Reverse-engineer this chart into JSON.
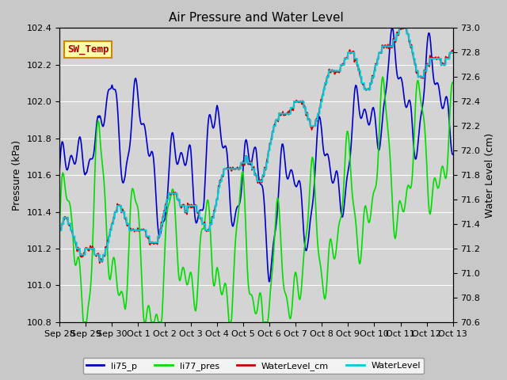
{
  "title": "Air Pressure and Water Level",
  "ylabel_left": "Pressure (kPa)",
  "ylabel_right": "Water Level (cm)",
  "ylim_left": [
    100.8,
    102.4
  ],
  "ylim_right": [
    70.6,
    73.0
  ],
  "fig_bg": "#c8c8c8",
  "plot_bg": "#d4d4d4",
  "legend_labels": [
    "li75_p",
    "li77_pres",
    "WaterLevel_cm",
    "WaterLevel"
  ],
  "line_colors": [
    "#0000cc",
    "#00dd00",
    "#cc0000",
    "#00ccdd"
  ],
  "annotation_text": "SW_Temp",
  "annotation_color": "#aa0000",
  "annotation_bg": "#ffffaa",
  "annotation_border": "#cc8800",
  "xtick_labels": [
    "Sep 28",
    "Sep 29",
    "Sep 30",
    "Oct 1",
    "Oct 2",
    "Oct 3",
    "Oct 4",
    "Oct 5",
    "Oct 6",
    "Oct 7",
    "Oct 8",
    "Oct 9",
    "Oct 10",
    "Oct 11",
    "Oct 12",
    "Oct 13"
  ]
}
